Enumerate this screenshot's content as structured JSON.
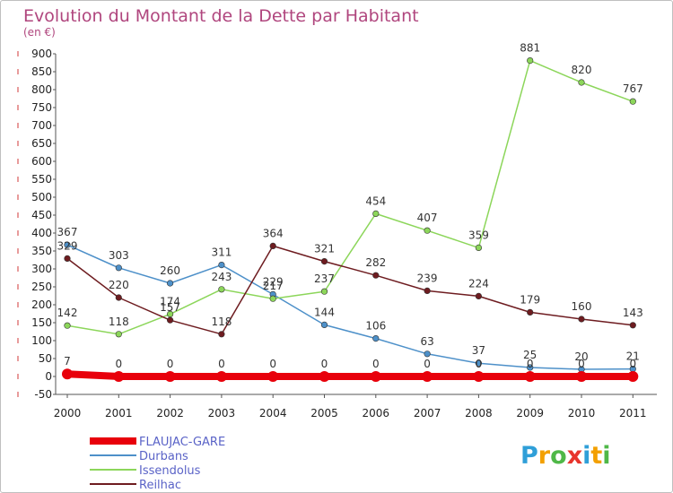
{
  "chart_data": {
    "type": "line",
    "title": "Evolution du Montant de la Dette par Habitant",
    "subtitle": "(en €)",
    "xlabel": "",
    "ylabel": "",
    "x": [
      "2000",
      "2001",
      "2002",
      "2003",
      "2004",
      "2005",
      "2006",
      "2007",
      "2008",
      "2009",
      "2010",
      "2011"
    ],
    "ylim": [
      -50,
      900
    ],
    "ytick_step": 50,
    "grid": false,
    "legend_position": "bottom-left",
    "series": [
      {
        "name": "FLAUJAC-GARE",
        "color": "#e8000b",
        "values": [
          7,
          0,
          0,
          0,
          0,
          0,
          0,
          0,
          0,
          0,
          0,
          0
        ],
        "thick": true
      },
      {
        "name": "Durbans",
        "color": "#4d90c9",
        "values": [
          367,
          303,
          260,
          311,
          229,
          144,
          106,
          63,
          37,
          25,
          20,
          21
        ]
      },
      {
        "name": "Issendolus",
        "color": "#8cd65a",
        "values": [
          142,
          118,
          174,
          243,
          217,
          237,
          454,
          407,
          359,
          881,
          820,
          767
        ]
      },
      {
        "name": "Reilhac",
        "color": "#6e1c20",
        "values": [
          329,
          220,
          157,
          118,
          364,
          321,
          282,
          239,
          224,
          179,
          160,
          143
        ]
      }
    ]
  },
  "logo": {
    "letters": [
      "P",
      "r",
      "o",
      "x",
      "i",
      "t",
      "i"
    ],
    "colors": [
      "#2f9fd8",
      "#f3a000",
      "#4fb848",
      "#e8342c",
      "#2f9fd8",
      "#f3a000",
      "#4fb848"
    ]
  }
}
